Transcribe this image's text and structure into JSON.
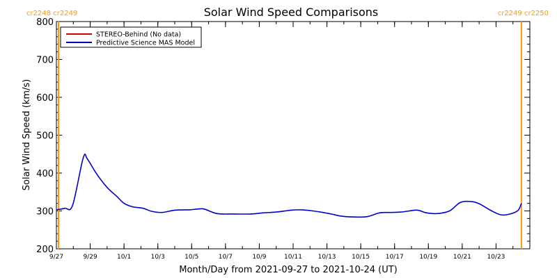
{
  "chart_data": {
    "type": "line",
    "title": "Solar Wind Speed Comparisons",
    "xlabel": "Month/Day from 2021-09-27 to 2021-10-24 (UT)",
    "ylabel": "Solar Wind Speed (km/s)",
    "ylim": [
      200,
      800
    ],
    "xlim": [
      "2021-09-27T00:00",
      "2021-10-25T00:00"
    ],
    "y_ticks": [
      200,
      300,
      400,
      500,
      600,
      700,
      800
    ],
    "x_ticks": [
      {
        "date": "2021-09-27",
        "label": "9/27"
      },
      {
        "date": "2021-09-29",
        "label": "9/29"
      },
      {
        "date": "2021-10-01",
        "label": "10/1"
      },
      {
        "date": "2021-10-03",
        "label": "10/3"
      },
      {
        "date": "2021-10-05",
        "label": "10/5"
      },
      {
        "date": "2021-10-07",
        "label": "10/7"
      },
      {
        "date": "2021-10-09",
        "label": "10/9"
      },
      {
        "date": "2021-10-11",
        "label": "10/11"
      },
      {
        "date": "2021-10-13",
        "label": "10/13"
      },
      {
        "date": "2021-10-15",
        "label": "10/15"
      },
      {
        "date": "2021-10-17",
        "label": "10/17"
      },
      {
        "date": "2021-10-19",
        "label": "10/19"
      },
      {
        "date": "2021-10-21",
        "label": "10/21"
      },
      {
        "date": "2021-10-23",
        "label": "10/23"
      }
    ],
    "carrington_markers": [
      {
        "date": "2021-09-27T03:00",
        "label": "cr2248 cr2249",
        "side": "left",
        "color": "#ff9900"
      },
      {
        "date": "2021-10-24T12:00",
        "label": "cr2249 cr2250",
        "side": "right",
        "color": "#ff9900"
      }
    ],
    "legend_position": "top-left",
    "series": [
      {
        "name": "STEREO-Behind (No data)",
        "color": "#cc0000",
        "x": [],
        "values": []
      },
      {
        "name": "Predictive Science MAS Model",
        "color": "#0000cc",
        "x": [
          "2021-09-27T00:00",
          "2021-09-27T12:00",
          "2021-09-27T23:00",
          "2021-09-28T14:00",
          "2021-09-28T20:00",
          "2021-09-29T09:00",
          "2021-09-30T00:00",
          "2021-09-30T14:00",
          "2021-10-01T00:00",
          "2021-10-01T12:00",
          "2021-10-02T03:00",
          "2021-10-02T15:00",
          "2021-10-03T06:00",
          "2021-10-04T00:00",
          "2021-10-04T21:00",
          "2021-10-05T08:00",
          "2021-10-05T18:00",
          "2021-10-06T12:00",
          "2021-10-07T12:00",
          "2021-10-08T12:00",
          "2021-10-09T06:00",
          "2021-10-10T00:00",
          "2021-10-10T21:00",
          "2021-10-11T12:00",
          "2021-10-12T00:00",
          "2021-10-12T15:00",
          "2021-10-13T06:00",
          "2021-10-13T21:00",
          "2021-10-14T15:00",
          "2021-10-15T09:00",
          "2021-10-16T03:00",
          "2021-10-16T18:00",
          "2021-10-17T09:00",
          "2021-10-17T21:00",
          "2021-10-18T09:00",
          "2021-10-18T21:00",
          "2021-10-19T12:00",
          "2021-10-20T06:00",
          "2021-10-20T21:00",
          "2021-10-21T12:00",
          "2021-10-22T00:00",
          "2021-10-22T15:00",
          "2021-10-23T06:00",
          "2021-10-23T18:00",
          "2021-10-24T07:00",
          "2021-10-24T12:00"
        ],
        "values": [
          303,
          307,
          315,
          440,
          437,
          398,
          362,
          338,
          320,
          311,
          307,
          299,
          296,
          302,
          303,
          305,
          305,
          293,
          292,
          292,
          295,
          297,
          302,
          303,
          301,
          297,
          292,
          286,
          284,
          285,
          295,
          296,
          297,
          300,
          302,
          295,
          293,
          300,
          322,
          325,
          319,
          303,
          290,
          291,
          301,
          320
        ]
      }
    ]
  }
}
